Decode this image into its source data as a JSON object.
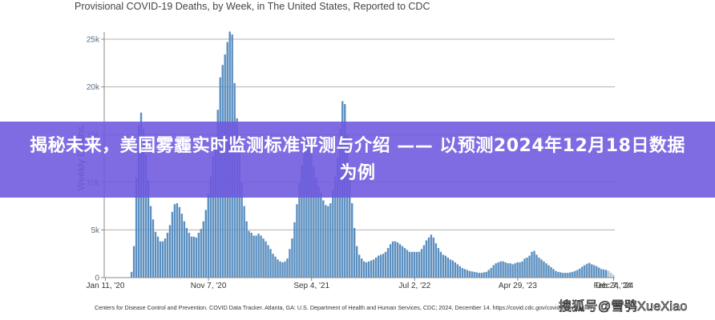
{
  "chart": {
    "title": "Provisional COVID-19 Deaths, by Week, in The United States, Reported to CDC",
    "source": "Centers for Disease Control and Prevention. COVID Data Tracker. Atlanta, GA: U.S. Department of Health and Human Services, CDC; 2024, December 14. https://covid.cdc.gov/covid-data-tracker",
    "watermark": "搜狐号@雪鸮XueXiao"
  },
  "banner": {
    "headline": "揭秘未来，美国雾霾实时监测标准评测与介绍 —— 以预测2024年12月18日数据为例"
  },
  "colors": {
    "bar": "#5b8fc0",
    "bar_edge": "#d8e6f3",
    "bar_provisional": "#b8c4cf",
    "grid": "#b0b0b0",
    "axis": "#888888",
    "banner": "#6e58de"
  },
  "chart_data": {
    "type": "bar",
    "title": "Provisional COVID-19 Deaths, by Week, in The United States, Reported to CDC",
    "xlabel": "",
    "ylabel": "Weekly Deaths",
    "ylim": [
      0,
      27000
    ],
    "yticks": [
      0,
      5000,
      10000,
      15000,
      20000,
      25000
    ],
    "ytick_labels": [
      "0",
      "5k",
      "10k",
      "15k",
      "20k",
      "25k"
    ],
    "xtick_labels": [
      "Jan 11, '20",
      "Nov 7, '20",
      "Sep 4, '21",
      "Jul 2, '22",
      "Apr 29, '23",
      "Feb 24, '24",
      "Dec 7, '24"
    ],
    "grid": true,
    "legend": null,
    "x_start": "Jan 11, '20",
    "x_end": "Dec 7, '24",
    "week_interval_days": 7,
    "values": [
      0,
      0,
      0,
      0,
      0,
      0,
      0,
      0,
      0,
      0,
      0,
      600,
      3300,
      10500,
      16000,
      17300,
      15600,
      12900,
      10200,
      7500,
      6100,
      4800,
      4300,
      3800,
      3800,
      4100,
      4700,
      5500,
      6900,
      7700,
      7800,
      7400,
      6700,
      5900,
      5200,
      4700,
      4300,
      4300,
      4200,
      4700,
      5100,
      5900,
      7100,
      8800,
      10600,
      12700,
      14800,
      17600,
      21000,
      22300,
      23400,
      24700,
      25800,
      25500,
      20400,
      16700,
      13200,
      9900,
      7500,
      5900,
      4900,
      4700,
      4400,
      4400,
      4600,
      4400,
      4100,
      3800,
      3400,
      3000,
      2500,
      2200,
      1900,
      1700,
      1600,
      1700,
      2000,
      3000,
      4100,
      5800,
      7700,
      9900,
      11800,
      13200,
      14600,
      14300,
      13000,
      11700,
      10500,
      9600,
      8900,
      8100,
      7600,
      7500,
      7800,
      9200,
      10600,
      12600,
      15600,
      18500,
      18200,
      15000,
      11100,
      7800,
      5200,
      3300,
      2400,
      2000,
      1700,
      1600,
      1700,
      1800,
      1900,
      2100,
      2300,
      2400,
      2500,
      2700,
      3100,
      3500,
      3800,
      3800,
      3700,
      3500,
      3300,
      3100,
      2900,
      2700,
      2700,
      2700,
      2700,
      2700,
      3000,
      3400,
      3900,
      4200,
      4500,
      4200,
      3600,
      3100,
      2700,
      2400,
      2300,
      2100,
      1900,
      1800,
      1600,
      1400,
      1200,
      1000,
      900,
      800,
      700,
      650,
      600,
      550,
      500,
      500,
      550,
      600,
      800,
      1000,
      1300,
      1500,
      1600,
      1700,
      1700,
      1600,
      1500,
      1500,
      1400,
      1500,
      1600,
      1600,
      1700,
      2000,
      2100,
      2300,
      2700,
      2800,
      2400,
      2100,
      1900,
      1700,
      1500,
      1300,
      1100,
      900,
      700,
      600,
      550,
      500,
      500,
      500,
      550,
      600,
      700,
      800,
      950,
      1150,
      1300,
      1450,
      1550,
      1400,
      1300,
      1200,
      1050,
      900,
      850,
      800,
      700,
      500,
      300
    ]
  }
}
